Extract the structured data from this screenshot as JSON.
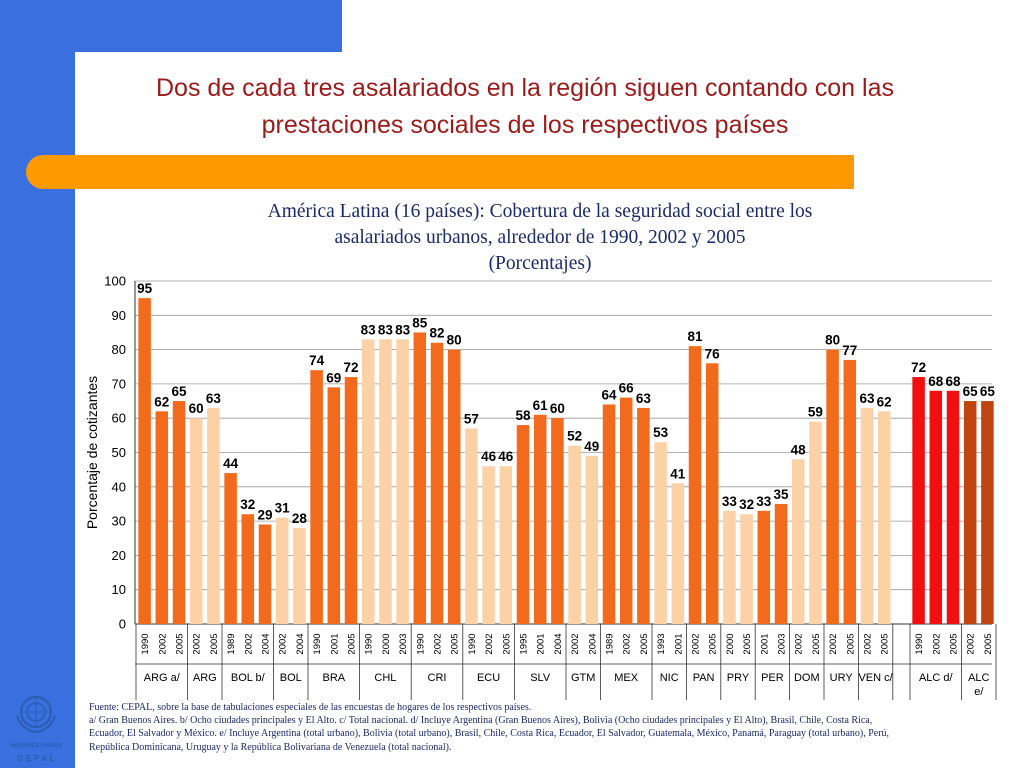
{
  "title_line1": "Dos de cada tres asalariados en la región siguen contando con las",
  "title_line2": "prestaciones sociales de los respectivos países",
  "colors": {
    "accent_blue": "#3a6fe0",
    "accent_orange": "#ff9900",
    "title_red": "#9b1a1a"
  },
  "chart_data": {
    "type": "bar",
    "title_lines": [
      "América Latina (16 países): Cobertura de la seguridad social entre los",
      "asalariados urbanos, alrededor de 1990, 2002 y 2005",
      "(Porcentajes)"
    ],
    "ylabel": "Porcentaje de cotizantes",
    "ylim": [
      0,
      100
    ],
    "yticks": [
      0,
      10,
      20,
      30,
      40,
      50,
      60,
      70,
      80,
      90,
      100
    ],
    "gridlines": true,
    "groups": [
      {
        "label": "ARG a/",
        "bars": [
          {
            "year": "1990",
            "value": 95,
            "color": "#f26a1b"
          },
          {
            "year": "2002",
            "value": 62,
            "color": "#f26a1b"
          },
          {
            "year": "2005",
            "value": 65,
            "color": "#f26a1b"
          }
        ]
      },
      {
        "label": "ARG",
        "bars": [
          {
            "year": "2002",
            "value": 60,
            "color": "#fcd1a6"
          },
          {
            "year": "2005",
            "value": 63,
            "color": "#fcd1a6"
          }
        ]
      },
      {
        "label": "BOL b/",
        "bars": [
          {
            "year": "1989",
            "value": 44,
            "color": "#f26a1b"
          },
          {
            "year": "2002",
            "value": 32,
            "color": "#f26a1b"
          },
          {
            "year": "2004",
            "value": 29,
            "color": "#f26a1b"
          }
        ]
      },
      {
        "label": "BOL",
        "bars": [
          {
            "year": "2002",
            "value": 31,
            "color": "#fcd1a6"
          },
          {
            "year": "2004",
            "value": 28,
            "color": "#fcd1a6"
          }
        ]
      },
      {
        "label": "BRA",
        "bars": [
          {
            "year": "1990",
            "value": 74,
            "color": "#f26a1b"
          },
          {
            "year": "2001",
            "value": 69,
            "color": "#f26a1b"
          },
          {
            "year": "2005",
            "value": 72,
            "color": "#f26a1b"
          }
        ]
      },
      {
        "label": "CHL",
        "bars": [
          {
            "year": "1990",
            "value": 83,
            "color": "#fcd1a6"
          },
          {
            "year": "2000",
            "value": 83,
            "color": "#fcd1a6"
          },
          {
            "year": "2003",
            "value": 83,
            "color": "#fcd1a6"
          }
        ]
      },
      {
        "label": "CRI",
        "bars": [
          {
            "year": "1990",
            "value": 85,
            "color": "#f26a1b"
          },
          {
            "year": "2002",
            "value": 82,
            "color": "#f26a1b"
          },
          {
            "year": "2005",
            "value": 80,
            "color": "#f26a1b"
          }
        ]
      },
      {
        "label": "ECU",
        "bars": [
          {
            "year": "1990",
            "value": 57,
            "color": "#fcd1a6"
          },
          {
            "year": "2002",
            "value": 46,
            "color": "#fcd1a6"
          },
          {
            "year": "2005",
            "value": 46,
            "color": "#fcd1a6"
          }
        ]
      },
      {
        "label": "SLV",
        "bars": [
          {
            "year": "1995",
            "value": 58,
            "color": "#f26a1b"
          },
          {
            "year": "2001",
            "value": 61,
            "color": "#f26a1b"
          },
          {
            "year": "2004",
            "value": 60,
            "color": "#f26a1b"
          }
        ]
      },
      {
        "label": "GTM",
        "bars": [
          {
            "year": "2002",
            "value": 52,
            "color": "#fcd1a6"
          },
          {
            "year": "2004",
            "value": 49,
            "color": "#fcd1a6"
          }
        ]
      },
      {
        "label": "MEX",
        "bars": [
          {
            "year": "1989",
            "value": 64,
            "color": "#f26a1b"
          },
          {
            "year": "2002",
            "value": 66,
            "color": "#f26a1b"
          },
          {
            "year": "2005",
            "value": 63,
            "color": "#f26a1b"
          }
        ]
      },
      {
        "label": "NIC",
        "bars": [
          {
            "year": "1993",
            "value": 53,
            "color": "#fcd1a6"
          },
          {
            "year": "2001",
            "value": 41,
            "color": "#fcd1a6"
          }
        ]
      },
      {
        "label": "PAN",
        "bars": [
          {
            "year": "2002",
            "value": 81,
            "color": "#f26a1b"
          },
          {
            "year": "2005",
            "value": 76,
            "color": "#f26a1b"
          }
        ]
      },
      {
        "label": "PRY",
        "bars": [
          {
            "year": "2000",
            "value": 33,
            "color": "#fcd1a6"
          },
          {
            "year": "2005",
            "value": 32,
            "color": "#fcd1a6"
          }
        ]
      },
      {
        "label": "PER",
        "bars": [
          {
            "year": "2001",
            "value": 33,
            "color": "#f26a1b"
          },
          {
            "year": "2003",
            "value": 35,
            "color": "#f26a1b"
          }
        ]
      },
      {
        "label": "DOM",
        "bars": [
          {
            "year": "2002",
            "value": 48,
            "color": "#fcd1a6"
          },
          {
            "year": "2005",
            "value": 59,
            "color": "#fcd1a6"
          }
        ]
      },
      {
        "label": "URY",
        "bars": [
          {
            "year": "2002",
            "value": 80,
            "color": "#f26a1b"
          },
          {
            "year": "2005",
            "value": 77,
            "color": "#f26a1b"
          }
        ]
      },
      {
        "label": "VEN c/",
        "bars": [
          {
            "year": "2002",
            "value": 63,
            "color": "#fcd1a6"
          },
          {
            "year": "2005",
            "value": 62,
            "color": "#fcd1a6"
          }
        ]
      },
      {
        "label": "ALC d/",
        "bars": [
          {
            "year": "1990",
            "value": 72,
            "color": "#f20f0f"
          },
          {
            "year": "2002",
            "value": 68,
            "color": "#f20f0f"
          },
          {
            "year": "2005",
            "value": 68,
            "color": "#f20f0f"
          }
        ]
      },
      {
        "label": "ALC e/",
        "bars": [
          {
            "year": "2002",
            "value": 65,
            "color": "#c0440f"
          },
          {
            "year": "2005",
            "value": 65,
            "color": "#c0440f"
          }
        ]
      }
    ]
  },
  "footnote": {
    "source": "Fuente: CEPAL, sobre la base de tabulaciones especiales de las encuestas de hogares de los respectivos países.",
    "line2": "a/ Gran Buenos Aires.  b/ Ocho ciudades principales y El Alto.  c/ Total nacional.  d/ Incluye Argentina (Gran Buenos Aires), Bolivia (Ocho ciudades principales y El Alto), Brasil, Chile, Costa Rica,",
    "line3": "Ecuador, El Salvador y México.  e/ Incluye Argentina (total urbano), Bolivia (total urbano), Brasil, Chile, Costa Rica, Ecuador, El Salvador, Guatemala, México, Panamá, Paraguay (total urbano), Perú,",
    "line4": "República Dominicana, Uruguay y la República Bolivariana de Venezuela (total nacional)."
  },
  "logo": {
    "org_name": "NACIONES UNIDAS",
    "acronym": "C E P A L"
  }
}
